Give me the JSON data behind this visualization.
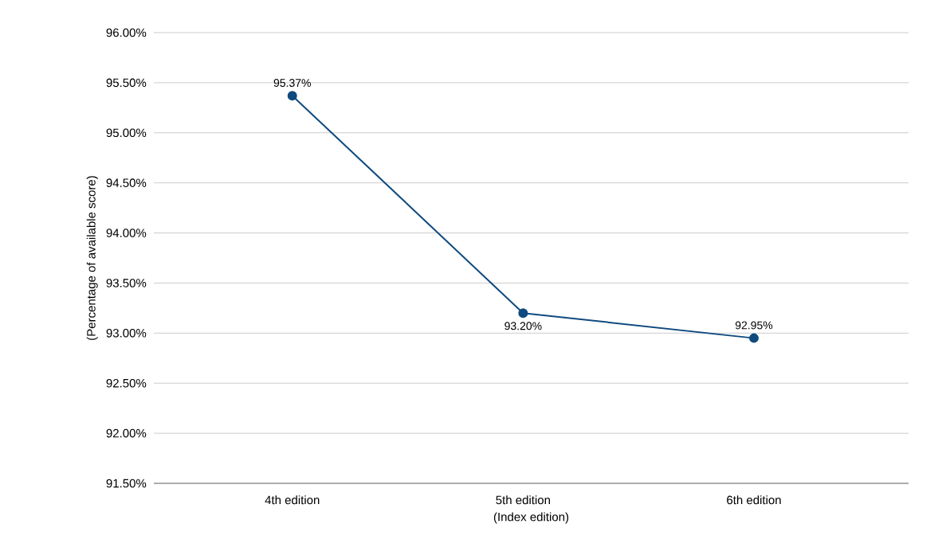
{
  "chart_data": {
    "type": "line",
    "xlabel": "(Index edition)",
    "ylabel": "(Percentage of available score)",
    "categories": [
      "4th edition",
      "5th edition",
      "6th edition"
    ],
    "values": [
      95.37,
      93.2,
      92.95
    ],
    "color": "#0f4a7f",
    "marker": "circle",
    "value_labels": [
      "95.37%",
      "93.20%",
      "92.95%"
    ],
    "ylim": [
      91.5,
      96.0
    ],
    "yticks": [
      {
        "value": 91.5,
        "label": "91.50%"
      },
      {
        "value": 92.0,
        "label": "92.00%"
      },
      {
        "value": 92.5,
        "label": "92.50%"
      },
      {
        "value": 93.0,
        "label": "93.00%"
      },
      {
        "value": 93.5,
        "label": "93.50%"
      },
      {
        "value": 94.0,
        "label": "94.00%"
      },
      {
        "value": 94.5,
        "label": "94.50%"
      },
      {
        "value": 95.0,
        "label": "95.00%"
      },
      {
        "value": 95.5,
        "label": "95.50%"
      },
      {
        "value": 96.0,
        "label": "96.00%"
      }
    ],
    "grid": "y"
  }
}
